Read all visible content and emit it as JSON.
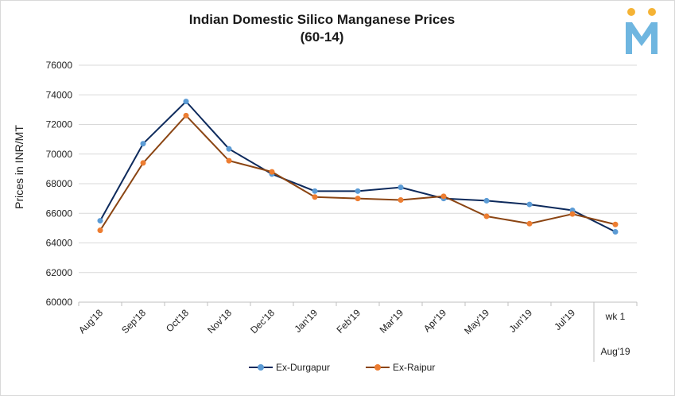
{
  "chart_data": {
    "type": "line",
    "title_line1": "Indian Domestic Silico Manganese Prices",
    "title_line2": "(60-14)",
    "ylabel": "Prices in INR/MT",
    "ylim": [
      60000,
      76000
    ],
    "yticks": [
      "60000",
      "62000",
      "64000",
      "66000",
      "68000",
      "70000",
      "72000",
      "74000",
      "76000"
    ],
    "categories": [
      "Aug'18",
      "Sep'18",
      "Oct'18",
      "Nov'18",
      "Dec'18",
      "Jan'19",
      "Feb'19",
      "Mar'19",
      "Apr'19",
      "May'19",
      "Jun'19",
      "Jul'19",
      "wk 1"
    ],
    "category_group_label": "Aug'19",
    "grid": true,
    "legend_position": "bottom",
    "series": [
      {
        "name": "Ex-Durgapur",
        "line_color": "#0d2a5c",
        "marker_color": "#5b9bd5",
        "values": [
          65500,
          70700,
          73550,
          70350,
          68650,
          67500,
          67500,
          67750,
          67000,
          66850,
          66600,
          66200,
          64750
        ]
      },
      {
        "name": "Ex-Raipur",
        "line_color": "#8b4513",
        "marker_color": "#ed7d31",
        "values": [
          64850,
          69400,
          72600,
          69550,
          68800,
          67100,
          67000,
          66900,
          67150,
          65800,
          65300,
          65950,
          65250
        ]
      }
    ]
  },
  "logo": {
    "top_color": "#f5b335",
    "body_color": "#6fb6e0"
  }
}
